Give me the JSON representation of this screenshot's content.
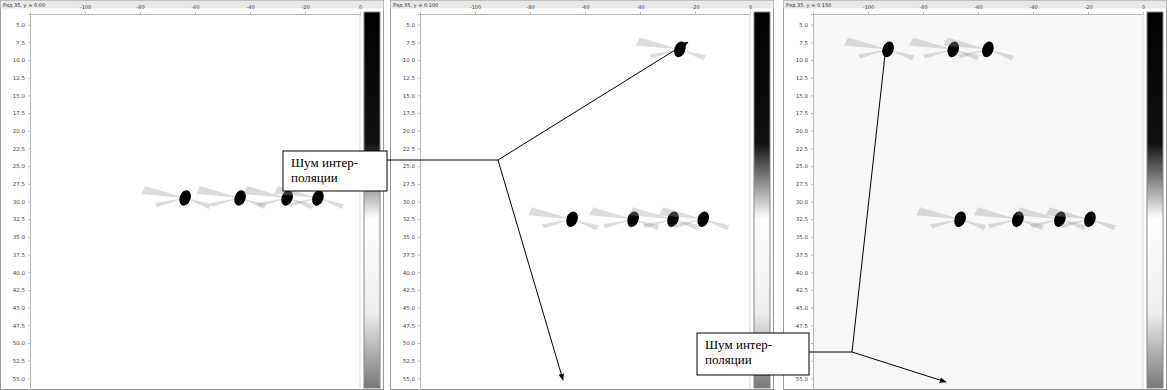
{
  "chart_data": [
    {
      "type": "scatter",
      "title": "Ряд 35, y = 0.00",
      "x": [
        -63.6,
        -43.6,
        -26.5,
        -15.3
      ],
      "values": [
        29.5,
        29.5,
        29.5,
        29.5
      ],
      "xlim": [
        -120,
        0
      ],
      "ylim": [
        3.5,
        56.5
      ],
      "xticks": [
        -100,
        -80,
        -60,
        -40,
        -20,
        0
      ],
      "yticks": [
        {
          "value": 5,
          "label": "5.0"
        },
        {
          "value": 7.5,
          "label": "7.5"
        },
        {
          "value": 10,
          "label": "10.0"
        },
        {
          "value": 12.5,
          "label": "12.5"
        },
        {
          "value": 15,
          "label": "15.0"
        },
        {
          "value": 17.5,
          "label": "17.5"
        },
        {
          "value": 20,
          "label": "20.0"
        },
        {
          "value": 22.5,
          "label": "22.5"
        },
        {
          "value": 25,
          "label": "25.0"
        },
        {
          "value": 27.5,
          "label": "27.5"
        },
        {
          "value": 30,
          "label": "30.0"
        },
        {
          "value": 32.5,
          "label": "32.5"
        },
        {
          "value": 35,
          "label": "35.0"
        },
        {
          "value": 37.5,
          "label": "37.5"
        },
        {
          "value": 40,
          "label": "40.0"
        },
        {
          "value": 42.5,
          "label": "42.5"
        },
        {
          "value": 45,
          "label": "45.0"
        },
        {
          "value": 47.5,
          "label": "47.5"
        },
        {
          "value": 50,
          "label": "50.0"
        },
        {
          "value": 52.5,
          "label": "52.5"
        },
        {
          "value": 55,
          "label": "55.0"
        }
      ]
    },
    {
      "type": "scatter",
      "title": "Ряд 35, y = 0.100",
      "x": [
        -64.7,
        -42.5,
        -28.0,
        -17.0,
        -25.5
      ],
      "values": [
        32.5,
        32.5,
        32.5,
        32.5,
        8.5
      ],
      "xlim": [
        -120,
        0
      ],
      "ylim": [
        3.5,
        56.5
      ],
      "xticks": [
        -100,
        -80,
        -60,
        -40,
        -20,
        0
      ],
      "yticks": [
        {
          "value": 5,
          "label": "5.0"
        },
        {
          "value": 7.5,
          "label": "7.5"
        },
        {
          "value": 10,
          "label": "10.0"
        },
        {
          "value": 12.5,
          "label": "12.5"
        },
        {
          "value": 15,
          "label": "15.0"
        },
        {
          "value": 17.5,
          "label": "17.5"
        },
        {
          "value": 20,
          "label": "20.0"
        },
        {
          "value": 22.5,
          "label": "22.5"
        },
        {
          "value": 25,
          "label": "25.0"
        },
        {
          "value": 27.5,
          "label": "27.5"
        },
        {
          "value": 30,
          "label": "30.0"
        },
        {
          "value": 32.5,
          "label": "32.5"
        },
        {
          "value": 35,
          "label": "35.0"
        },
        {
          "value": 37.5,
          "label": "37.5"
        },
        {
          "value": 40,
          "label": "40.0"
        },
        {
          "value": 42.5,
          "label": "42.5"
        },
        {
          "value": 45,
          "label": "45.0"
        },
        {
          "value": 47.5,
          "label": "47.5"
        },
        {
          "value": 50,
          "label": "50.0"
        },
        {
          "value": 52.5,
          "label": "52.5"
        },
        {
          "value": 55,
          "label": "55.0"
        }
      ]
    },
    {
      "type": "scatter",
      "title": "Ряд 35, y = 0.150",
      "x": [
        -66.5,
        -45.5,
        -30.2,
        -19.3,
        -92.7,
        -69.0,
        -56.4
      ],
      "values": [
        32.5,
        32.5,
        32.5,
        32.5,
        8.5,
        8.5,
        8.5
      ],
      "xlim": [
        -120,
        0
      ],
      "ylim": [
        3.5,
        56.5
      ],
      "xticks": [
        -100,
        -80,
        -60,
        -40,
        -20,
        0
      ],
      "yticks": [
        {
          "value": 5,
          "label": "5.0"
        },
        {
          "value": 7.5,
          "label": "7.5"
        },
        {
          "value": 10,
          "label": "10.0"
        },
        {
          "value": 12.5,
          "label": "12.5"
        },
        {
          "value": 15,
          "label": "15.0"
        },
        {
          "value": 17.5,
          "label": "17.5"
        },
        {
          "value": 20,
          "label": "20.0"
        },
        {
          "value": 22.5,
          "label": "22.5"
        },
        {
          "value": 25,
          "label": "25.0"
        },
        {
          "value": 27.5,
          "label": "27.5"
        },
        {
          "value": 30,
          "label": "30.0"
        },
        {
          "value": 32.5,
          "label": "32.5"
        },
        {
          "value": 35,
          "label": "35.0"
        },
        {
          "value": 37.5,
          "label": "37.5"
        },
        {
          "value": 40,
          "label": "40.0"
        },
        {
          "value": 42.5,
          "label": "42.5"
        },
        {
          "value": 45,
          "label": "45.0"
        },
        {
          "value": 47.5,
          "label": "47.5"
        },
        {
          "value": 50,
          "label": "50.0"
        },
        {
          "value": 52.5,
          "label": "52.5"
        },
        {
          "value": 55,
          "label": "55.0"
        }
      ]
    }
  ],
  "annotations": [
    {
      "lines": [
        "Шум интер-",
        "поляции"
      ]
    },
    {
      "lines": [
        "Шум интер-",
        "поляции"
      ]
    }
  ]
}
